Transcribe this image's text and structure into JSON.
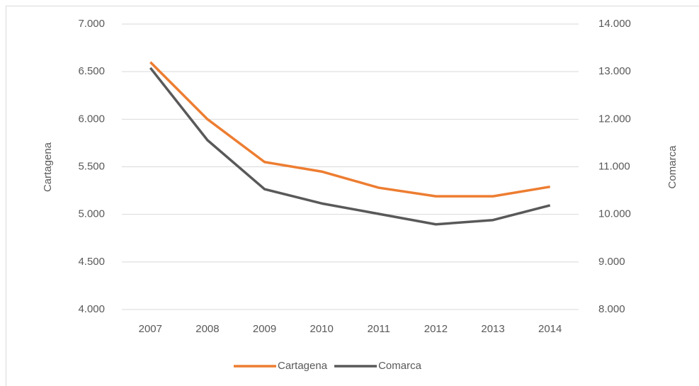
{
  "chart_data": {
    "type": "line",
    "categories": [
      "2007",
      "2008",
      "2009",
      "2010",
      "2011",
      "2012",
      "2013",
      "2014"
    ],
    "series": [
      {
        "name": "Cartagena",
        "color": "#ed7d31",
        "values": [
          6600,
          6000,
          5550,
          5450,
          5280,
          5190,
          5190,
          5290
        ]
      },
      {
        "name": "Comarca",
        "color": "#595959",
        "axis": "y2",
        "values": [
          13080,
          11560,
          10530,
          10230,
          10010,
          9790,
          9880,
          10190
        ]
      }
    ],
    "ylabel": "Cartagena",
    "y2label": "Comarca",
    "ylim": [
      4000,
      7000
    ],
    "yticks": [
      {
        "value": 4000,
        "label": "4.000"
      },
      {
        "value": 4500,
        "label": "4.500"
      },
      {
        "value": 5000,
        "label": "5.000"
      },
      {
        "value": 5500,
        "label": "5.500"
      },
      {
        "value": 6000,
        "label": "6.000"
      },
      {
        "value": 6500,
        "label": "6.500"
      },
      {
        "value": 7000,
        "label": "7.000"
      }
    ],
    "y2lim": [
      8000,
      14000
    ],
    "y2ticks": [
      {
        "value": 8000,
        "label": "8.000"
      },
      {
        "value": 9000,
        "label": "9.000"
      },
      {
        "value": 10000,
        "label": "10.000"
      },
      {
        "value": 11000,
        "label": "11.000"
      },
      {
        "value": 12000,
        "label": "12.000"
      },
      {
        "value": 13000,
        "label": "13.000"
      },
      {
        "value": 14000,
        "label": "14.000"
      }
    ],
    "grid": true,
    "legend": "bottom"
  }
}
